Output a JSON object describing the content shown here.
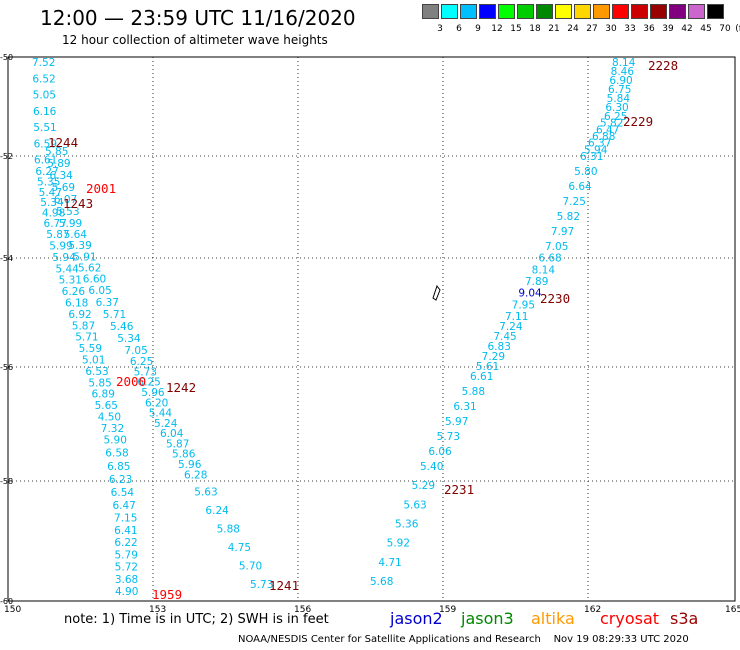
{
  "header": {
    "title": "12:00 — 23:59 UTC 11/16/2020",
    "subtitle": "12 hour collection of altimeter wave heights"
  },
  "legend": {
    "unit": "(ft)",
    "bins": [
      {
        "label": "3",
        "color": "#808080"
      },
      {
        "label": "6",
        "color": "#00ffff"
      },
      {
        "label": "9",
        "color": "#00bfff"
      },
      {
        "label": "12",
        "color": "#0000ff"
      },
      {
        "label": "15",
        "color": "#00ff00"
      },
      {
        "label": "18",
        "color": "#00cc00"
      },
      {
        "label": "21",
        "color": "#008800"
      },
      {
        "label": "24",
        "color": "#ffff00"
      },
      {
        "label": "27",
        "color": "#ffd700"
      },
      {
        "label": "30",
        "color": "#ff9900"
      },
      {
        "label": "33",
        "color": "#ff0000"
      },
      {
        "label": "36",
        "color": "#cc0000"
      },
      {
        "label": "39",
        "color": "#990000"
      },
      {
        "label": "42",
        "color": "#800080"
      },
      {
        "label": "45",
        "color": "#cc66cc"
      },
      {
        "label": "70",
        "color": "#000000"
      }
    ]
  },
  "axes": {
    "lon_ticks": [
      "150",
      "153",
      "156",
      "159",
      "162",
      "165"
    ],
    "lat_ticks": [
      "-50",
      "-52",
      "-54",
      "-56",
      "-58",
      "-60"
    ]
  },
  "tracks": [
    {
      "values": [
        "7.52",
        "6.52",
        "5.05",
        "6.16",
        "5.51",
        "6.59",
        "6.61",
        "6.27",
        "5.35",
        "5.47",
        "5.34",
        "4.98",
        "6.77",
        "5.87",
        "5.99",
        "5.94",
        "5.44",
        "5.31",
        "6.26",
        "6.18",
        "6.92",
        "5.87",
        "5.71",
        "5.59",
        "5.01",
        "6.53",
        "5.85",
        "6.89",
        "5.65",
        "4.50",
        "7.32",
        "5.90",
        "6.58",
        "6.85",
        "6.23",
        "6.54",
        "6.47",
        "7.15",
        "6.41",
        "6.22",
        "5.79",
        "5.72",
        "3.68",
        "4.90"
      ]
    },
    {
      "values": [
        "5.85",
        "5.89",
        "6.34",
        "5.69",
        "6.07",
        "5.53",
        "5.99",
        "5.64",
        "5.39",
        "5.91",
        "5.62",
        "6.60",
        "6.05",
        "6.37",
        "5.71",
        "5.46",
        "5.34",
        "7.05",
        "6.25",
        "5.73",
        "6.25",
        "5.96",
        "6.20",
        "5.44",
        "5.24",
        "6.04",
        "5.87",
        "5.86",
        "5.96",
        "6.28",
        "5.63",
        "6.24",
        "5.88",
        "4.75",
        "5.70",
        "5.73"
      ]
    },
    {
      "values": [
        "8.14",
        "8.46",
        "6.90",
        "6.75",
        "5.84",
        "6.30",
        "6.25",
        "5.82",
        "6.47",
        "6.88",
        "6.37",
        "5.94",
        "6.31",
        "5.80",
        "6.64",
        "7.25",
        "5.82",
        "7.97",
        "7.05",
        "6.68",
        "8.14",
        "7.89",
        "9.04",
        "7.95",
        "7.11",
        "7.24",
        "7.45",
        "6.83",
        "7.29",
        "5.61",
        "6.61",
        "5.88",
        "6.31",
        "5.97",
        "5.73",
        "6.06",
        "5.40",
        "5.29",
        "5.63",
        "5.36",
        "5.92",
        "4.71",
        "5.68"
      ]
    }
  ],
  "times": [
    {
      "label": "1244",
      "color": "#800000"
    },
    {
      "label": "2001",
      "color": "#ff0000"
    },
    {
      "label": "1243",
      "color": "#800000"
    },
    {
      "label": "2000",
      "color": "#ff0000"
    },
    {
      "label": "1242",
      "color": "#800000"
    },
    {
      "label": "1959",
      "color": "#ff0000"
    },
    {
      "label": "1241",
      "color": "#800000"
    },
    {
      "label": "2228",
      "color": "#800000"
    },
    {
      "label": "2229",
      "color": "#800000"
    },
    {
      "label": "2230",
      "color": "#800000"
    },
    {
      "label": "2231",
      "color": "#800000"
    }
  ],
  "note": "note: 1) Time is in UTC; 2) SWH is in feet",
  "satellites": [
    {
      "name": "jason2",
      "color": "#0000cc"
    },
    {
      "name": "jason3",
      "color": "#008800"
    },
    {
      "name": "altika",
      "color": "#ff9900"
    },
    {
      "name": "cryosat",
      "color": "#ff0000"
    },
    {
      "name": "s3a",
      "color": "#990000"
    }
  ],
  "credit": "NOAA/NESDIS Center for Satellite Applications and Research    Nov 19 08:29:33 UTC 2020"
}
